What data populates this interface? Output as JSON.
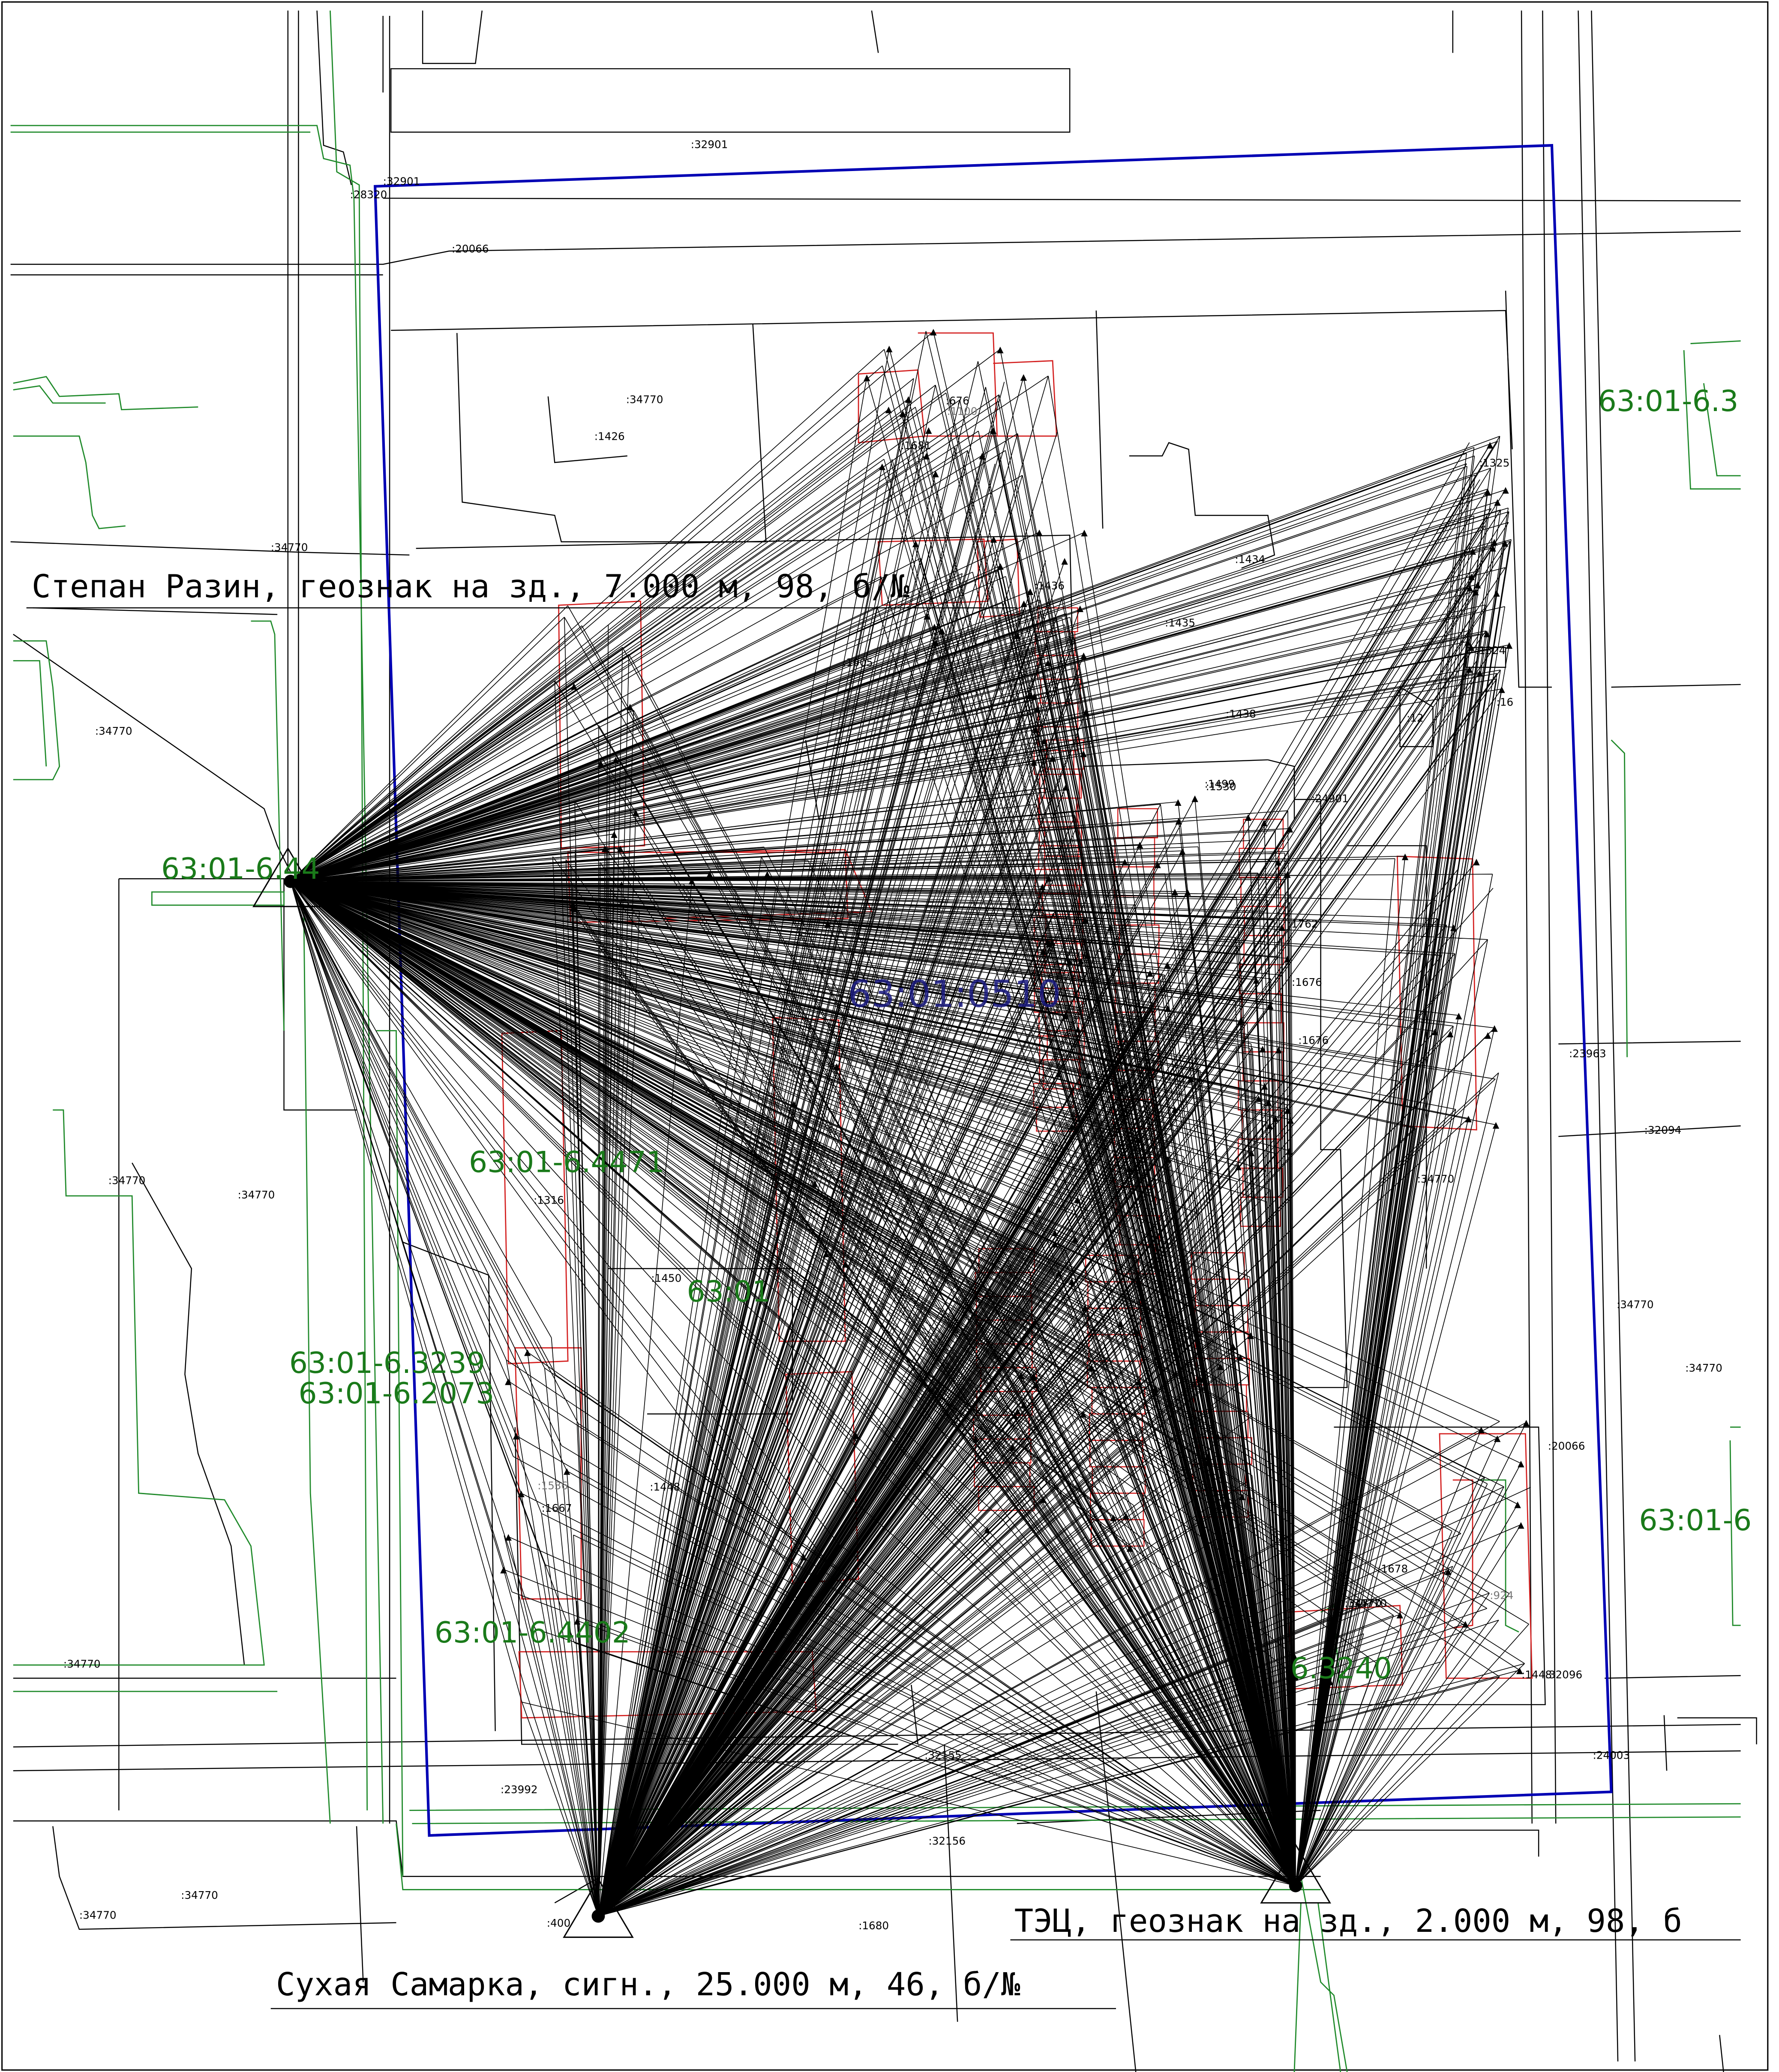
{
  "colors": {
    "background": "#ffffff",
    "parcel_lines": "#000000",
    "zone_lines": "#1f8a2a",
    "zone_text": "#1a7a1a",
    "boundary": "#0000b4",
    "buildings": "#d42020",
    "survey_rays": "#000000",
    "center_text": "#1a1a80"
  },
  "stations": [
    {
      "id": "st-razin",
      "label": "Степан Разин, геознак на зд., 7.000 м, 98, б/№",
      "symbol": "triangle-icon"
    },
    {
      "id": "st-samarka",
      "label": "Сухая Самарка, сигн., 25.000 м, 46, б/№",
      "symbol": "triangle-icon"
    },
    {
      "id": "st-tec",
      "label": "ТЭЦ, геознак на зд., 2.000 м, 98, б",
      "symbol": "triangle-icon"
    }
  ],
  "zones": [
    "63:01-6.44",
    "63:01-6.3",
    "63:01-6.4471",
    "63:01",
    "63:01-6.3239",
    "63:01-6.2073",
    "63:01-6.4402",
    "6.3240",
    "63:01-6"
  ],
  "block_label": "63:01:0510",
  "parcel_labels": [
    ":32901",
    ":32901",
    ":28320",
    ":20066",
    ":34770",
    ":1426",
    ":676",
    ":1100",
    ":34770",
    ":1436",
    ":1434",
    ":1435",
    ":1438",
    ":1499",
    ":24901",
    ":1762",
    ":1676",
    ":1676",
    ":23963",
    ":32094",
    ":34770",
    ":34770",
    ":34770",
    ":34770",
    ":34770",
    ":1316",
    ":1450",
    ":34770",
    ":34770",
    ":1448",
    ":1667",
    ":20066",
    ":1678",
    ":924",
    ":34770",
    ":32096",
    ":1448",
    ":34770",
    ":23992",
    ":32155",
    ":24003",
    ":32156",
    ":34770",
    ":34770",
    ":400",
    ":1680",
    ":1325",
    ":1324",
    ":12",
    ":1530",
    ":1681",
    ":1005",
    ":16",
    ":1536"
  ]
}
